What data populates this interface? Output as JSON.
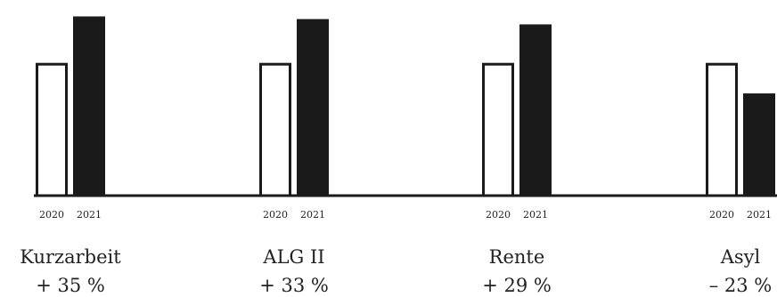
{
  "chart_data": {
    "type": "bar",
    "categories": [
      "Kurzarbeit",
      "ALG II",
      "Rente",
      "Asyl"
    ],
    "changes": [
      "+ 35 %",
      "+ 33 %",
      "+ 29 %",
      "– 23 %"
    ],
    "series": [
      {
        "label": "2020",
        "values": [
          100,
          100,
          100,
          100
        ]
      },
      {
        "label": "2021",
        "values": [
          135,
          133,
          129,
          77
        ]
      }
    ],
    "ylim": [
      0,
      140
    ],
    "grid": false,
    "legend": "none",
    "colors": {
      "bar_2020_fill": "#ffffff",
      "bar_2020_stroke": "#1a1a1a",
      "bar_2021_fill": "#1a1a1a",
      "baseline": "#1a1a1a",
      "text": "#222222"
    }
  }
}
